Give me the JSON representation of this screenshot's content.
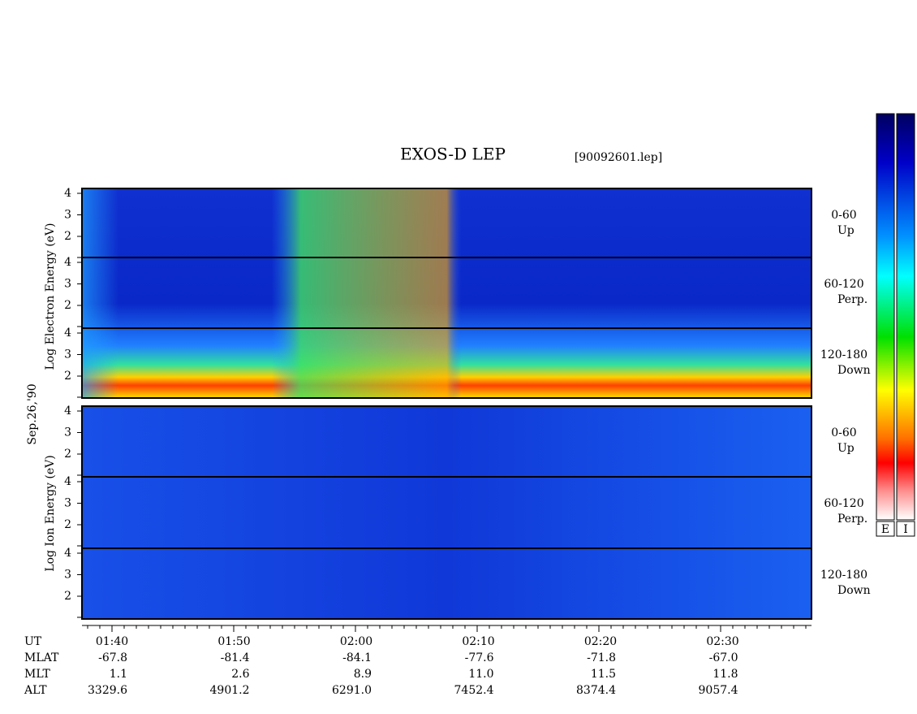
{
  "header": {
    "title": "EXOS-D LEP",
    "file": "[90092601.lep]",
    "date": "Sep.26,'90"
  },
  "electron": {
    "axis_label": "Log  Electron  Energy (eV)",
    "panels": [
      {
        "pitch": "0-60",
        "dir": "Up"
      },
      {
        "pitch": "60-120",
        "dir": "Perp."
      },
      {
        "pitch": "120-180",
        "dir": "Down"
      }
    ]
  },
  "ion": {
    "axis_label": "Log  Ion  Energy (eV)",
    "panels": [
      {
        "pitch": "0-60",
        "dir": "Up"
      },
      {
        "pitch": "60-120",
        "dir": "Perp."
      },
      {
        "pitch": "120-180",
        "dir": "Down"
      }
    ]
  },
  "energy_ticks": [
    "4",
    "3",
    "2"
  ],
  "table": {
    "row_labels": [
      "UT",
      "MLAT",
      "MLT",
      "ALT"
    ],
    "columns": [
      [
        "01:40",
        "-67.8",
        "1.1",
        "3329.6"
      ],
      [
        "01:50",
        "-81.4",
        "2.6",
        "4901.2"
      ],
      [
        "02:00",
        "-84.1",
        "8.9",
        "6291.0"
      ],
      [
        "02:10",
        "-77.6",
        "11.0",
        "7452.4"
      ],
      [
        "02:20",
        "-71.8",
        "11.5",
        "8374.4"
      ],
      [
        "02:30",
        "-67.0",
        "11.8",
        "9057.4"
      ]
    ]
  },
  "colorbar_labels": [
    "E",
    "I"
  ]
}
